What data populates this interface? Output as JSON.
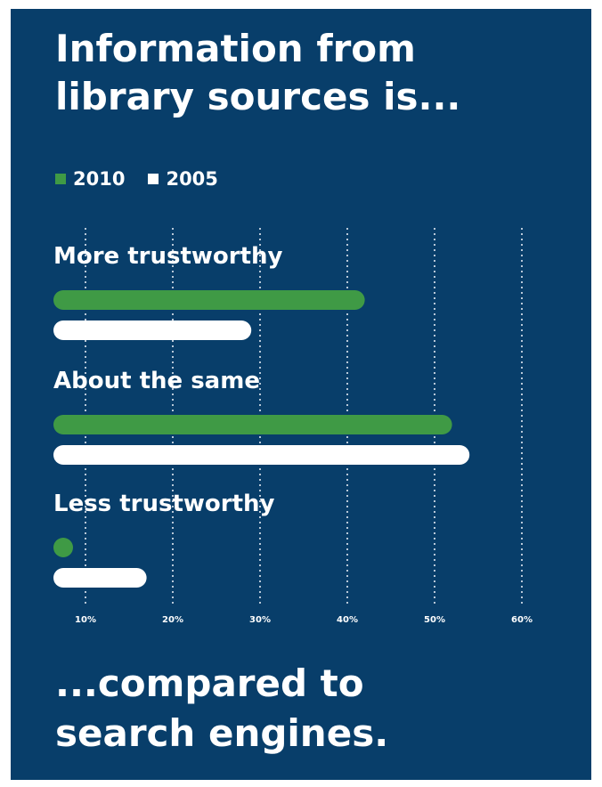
{
  "title_lines": [
    "Information from",
    "library sources is..."
  ],
  "footer_lines": [
    "...compared to",
    "search engines."
  ],
  "colors": {
    "background": "#083e6a",
    "series_2010": "#3f9a45",
    "series_2005": "#ffffff",
    "text": "#ffffff",
    "grid": "#b8c8d8"
  },
  "chart_data": {
    "type": "bar",
    "orientation": "horizontal",
    "categories": [
      "More trustworthy",
      "About the same",
      "Less trustworthy"
    ],
    "series": [
      {
        "name": "2010",
        "values": [
          42,
          52,
          5
        ]
      },
      {
        "name": "2005",
        "values": [
          29,
          54,
          17
        ]
      }
    ],
    "xticks": [
      10,
      20,
      30,
      40,
      50,
      60
    ],
    "xtick_labels": [
      "10%",
      "20%",
      "30%",
      "40%",
      "50%",
      "60%"
    ],
    "xlim": [
      6,
      60
    ],
    "grid": true,
    "legend_position": "top-left"
  }
}
